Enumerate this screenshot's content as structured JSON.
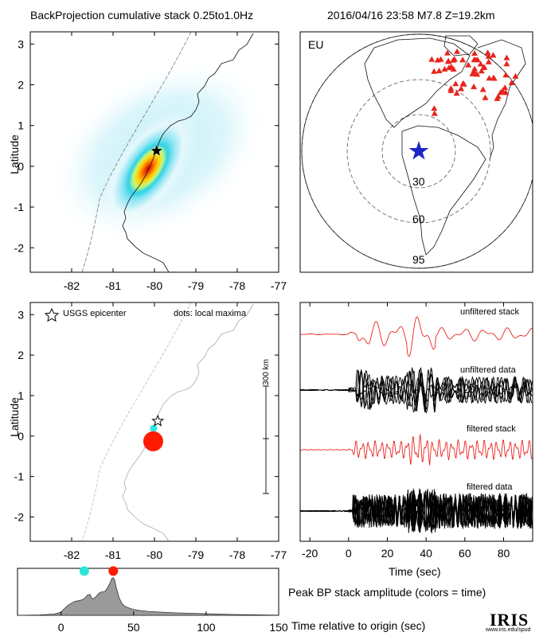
{
  "header": {
    "title": "BackProjection cumulative stack 0.25to1.0Hz",
    "event": "2016/04/16 23:58   M7.8   Z=19.2km"
  },
  "colors": {
    "stack": "#e8241c",
    "data": "#000000",
    "epicenter_star": "#1b25c9",
    "stations": "#e8241c",
    "local_max_red": "#ff1a00",
    "local_max_cyan": "#2ee6d8",
    "bar_fill": "#9a9a9a"
  },
  "map_panel": {
    "ylabel": "Latitude",
    "x_ticks": [
      "-82",
      "-81",
      "-80",
      "-79",
      "-78",
      "-77"
    ],
    "y_ticks": [
      "3",
      "2",
      "1",
      "0",
      "-1",
      "-2"
    ]
  },
  "globe_panel": {
    "region_label": "EU",
    "ring_labels": [
      "30",
      "60",
      "95"
    ]
  },
  "maxima_panel": {
    "ylabel": "Latitude",
    "legend_star": "USGS epicenter",
    "legend_dots": "dots: local maxima",
    "scale_label": "300 km",
    "x_ticks": [
      "-82",
      "-81",
      "-80",
      "-79",
      "-78",
      "-77"
    ],
    "y_ticks": [
      "3",
      "2",
      "1",
      "0",
      "-1",
      "-2"
    ]
  },
  "trace_panel": {
    "labels": [
      "unfiltered stack",
      "unfiltered data",
      "filtered stack",
      "filtered data"
    ],
    "x_ticks": [
      "-20",
      "0",
      "20",
      "40",
      "60",
      "80"
    ],
    "xlabel": "Time (sec)"
  },
  "stf_panel": {
    "title": "Peak BP stack amplitude (colors = time)",
    "xlabel": "Time relative to origin (sec)",
    "x_ticks": [
      "0",
      "50",
      "100",
      "150"
    ]
  },
  "logo": "IRIS",
  "logo_url": "www.iris.edu/spud",
  "chart_data": [
    {
      "type": "heatmap",
      "title": "BackProjection cumulative stack 0.25to1.0Hz",
      "xlim": [
        -83,
        -77
      ],
      "ylim": [
        -2.6,
        3.3
      ],
      "ylabel": "Latitude",
      "peak": {
        "lon": -80.2,
        "lat": 0.05
      },
      "epicenter": {
        "lon": -79.95,
        "lat": 0.38
      }
    },
    {
      "type": "scatter",
      "xlim": [
        -83,
        -77
      ],
      "ylim": [
        -2.6,
        3.3
      ],
      "ylabel": "Latitude",
      "epicenter": {
        "lon": -79.92,
        "lat": 0.37
      },
      "local_maxima": [
        {
          "lon": -80.02,
          "lat": 0.19,
          "color": "cyan",
          "time": 16
        },
        {
          "lon": -80.03,
          "lat": -0.13,
          "color": "red",
          "time": 36
        }
      ]
    },
    {
      "type": "line",
      "xlabel": "Time (sec)",
      "xlim": [
        -25,
        95
      ],
      "series": [
        {
          "name": "unfiltered stack"
        },
        {
          "name": "unfiltered data"
        },
        {
          "name": "filtered stack"
        },
        {
          "name": "filtered data"
        }
      ]
    },
    {
      "type": "area",
      "title": "Peak BP stack amplitude (colors = time)",
      "xlabel": "Time relative to origin (sec)",
      "xlim": [
        -30,
        150
      ],
      "x": [
        -30,
        -15,
        -5,
        0,
        2,
        5,
        8,
        10,
        12,
        15,
        17,
        18,
        20,
        21,
        22,
        24,
        26,
        28,
        30,
        32,
        34,
        35,
        36,
        37,
        38,
        40,
        42,
        44,
        46,
        48,
        50,
        55,
        60,
        70,
        80,
        90,
        100,
        110,
        120,
        130,
        140,
        150
      ],
      "y": [
        0.0,
        0.01,
        0.03,
        0.08,
        0.16,
        0.26,
        0.33,
        0.36,
        0.37,
        0.4,
        0.46,
        0.51,
        0.53,
        0.44,
        0.42,
        0.47,
        0.56,
        0.6,
        0.6,
        0.7,
        0.84,
        0.94,
        0.96,
        0.9,
        0.72,
        0.45,
        0.3,
        0.23,
        0.2,
        0.17,
        0.15,
        0.12,
        0.1,
        0.08,
        0.06,
        0.05,
        0.04,
        0.03,
        0.02,
        0.015,
        0.01,
        0.005
      ],
      "peaks": [
        {
          "time": 16,
          "color": "cyan",
          "amp": 1.2
        },
        {
          "time": 36,
          "color": "red",
          "amp": 1.2
        }
      ]
    }
  ]
}
